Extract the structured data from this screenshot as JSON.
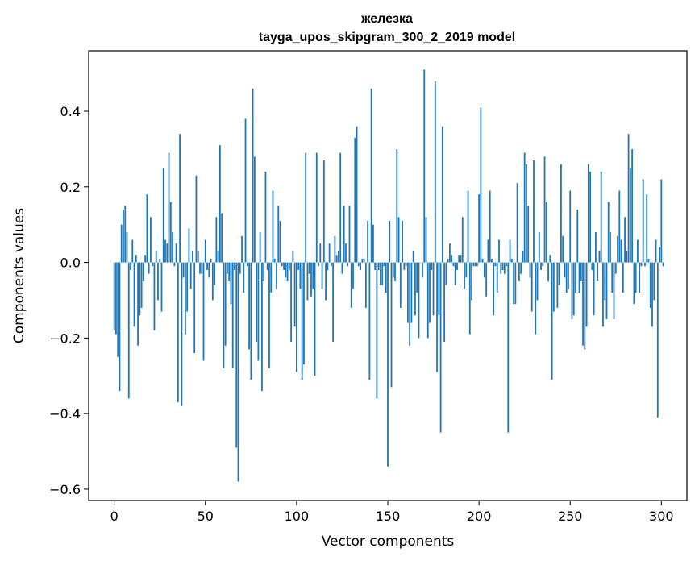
{
  "chart_data": {
    "type": "bar",
    "title": "железка",
    "subtitle": "tayga_upos_skipgram_300_2_2019 model",
    "xlabel": "Vector components",
    "ylabel": "Components values",
    "xlim": [
      -14,
      314
    ],
    "ylim": [
      -0.63,
      0.56
    ],
    "xticks": [
      0,
      50,
      100,
      150,
      200,
      250,
      300
    ],
    "yticks": [
      -0.6,
      -0.4,
      -0.2,
      0.0,
      0.2,
      0.4
    ],
    "ytick_labels": [
      "−0.6",
      "−0.4",
      "−0.2",
      "0.0",
      "0.2",
      "0.4"
    ],
    "bar_color": "#1f77b4",
    "grid": false,
    "values": [
      -0.18,
      -0.19,
      -0.25,
      -0.34,
      0.1,
      0.14,
      0.15,
      0.08,
      -0.36,
      -0.02,
      0.06,
      -0.17,
      0.02,
      -0.22,
      -0.14,
      -0.12,
      -0.05,
      0.02,
      0.18,
      -0.03,
      0.12,
      -0.01,
      -0.18,
      0.03,
      -0.1,
      0.01,
      -0.13,
      0.25,
      0.06,
      0.05,
      0.29,
      0.16,
      0.08,
      -0.01,
      0.05,
      -0.37,
      0.34,
      -0.38,
      -0.04,
      -0.19,
      -0.13,
      0.09,
      -0.07,
      0.03,
      -0.24,
      0.23,
      0.03,
      -0.03,
      -0.03,
      -0.26,
      0.06,
      -0.02,
      -0.04,
      0.01,
      -0.1,
      -0.06,
      0.12,
      0.03,
      0.31,
      0.13,
      -0.28,
      -0.22,
      -0.03,
      -0.05,
      -0.11,
      -0.28,
      -0.02,
      -0.49,
      -0.58,
      -0.03,
      0.07,
      -0.08,
      0.38,
      -0.01,
      -0.23,
      -0.31,
      0.46,
      0.28,
      -0.21,
      -0.26,
      0.08,
      -0.34,
      -0.05,
      0.24,
      -0.02,
      -0.28,
      -0.08,
      0.19,
      0.01,
      -0.07,
      0.15,
      0.11,
      -0.01,
      -0.02,
      -0.04,
      -0.05,
      -0.02,
      -0.21,
      0.03,
      -0.17,
      -0.29,
      -0.02,
      -0.07,
      -0.31,
      -0.27,
      0.29,
      -0.1,
      -0.03,
      -0.09,
      -0.07,
      -0.3,
      0.29,
      -0.01,
      0.05,
      -0.07,
      0.27,
      -0.1,
      -0.02,
      0.05,
      -0.01,
      -0.21,
      0.07,
      0.02,
      0.03,
      0.29,
      -0.03,
      0.15,
      0.05,
      -0.01,
      0.15,
      -0.12,
      -0.07,
      0.33,
      0.36,
      -0.01,
      -0.02,
      0.01,
      0.01,
      -0.12,
      0.11,
      -0.31,
      0.46,
      0.1,
      -0.02,
      -0.36,
      -0.02,
      -0.06,
      -0.06,
      -0.01,
      -0.08,
      -0.54,
      0.11,
      -0.33,
      -0.04,
      -0.05,
      0.3,
      0.12,
      -0.12,
      0.11,
      -0.02,
      -0.01,
      -0.16,
      -0.22,
      -0.16,
      0.03,
      -0.14,
      -0.08,
      -0.2,
      0.0,
      -0.04,
      0.51,
      0.12,
      -0.2,
      -0.16,
      -0.02,
      -0.14,
      0.48,
      -0.29,
      -0.14,
      -0.45,
      0.36,
      -0.21,
      -0.06,
      0.01,
      0.05,
      0.02,
      -0.01,
      -0.06,
      -0.02,
      0.02,
      0.02,
      0.12,
      -0.07,
      -0.04,
      0.19,
      -0.19,
      -0.1,
      -0.01,
      -0.01,
      -0.01,
      0.18,
      0.41,
      0.01,
      -0.04,
      -0.09,
      0.06,
      0.19,
      0.01,
      -0.14,
      -0.01,
      -0.08,
      0.06,
      -0.03,
      -0.02,
      -0.03,
      -0.01,
      -0.45,
      0.06,
      0.01,
      -0.11,
      -0.11,
      0.21,
      -0.05,
      -0.03,
      0.03,
      0.29,
      0.26,
      0.15,
      -0.04,
      -0.13,
      0.27,
      -0.19,
      -0.1,
      0.08,
      -0.02,
      -0.01,
      0.28,
      0.16,
      -0.05,
      0.02,
      -0.31,
      -0.13,
      0.0,
      -0.12,
      -0.06,
      0.26,
      0.07,
      -0.04,
      -0.08,
      -0.07,
      0.19,
      -0.15,
      -0.14,
      -0.08,
      0.14,
      -0.08,
      -0.05,
      -0.22,
      -0.23,
      -0.17,
      0.26,
      0.24,
      -0.02,
      -0.14,
      0.08,
      -0.05,
      0.03,
      0.24,
      -0.17,
      -0.1,
      -0.15,
      0.16,
      0.08,
      -0.08,
      -0.15,
      -0.03,
      0.07,
      0.19,
      0.06,
      -0.08,
      0.12,
      0.03,
      0.34,
      0.25,
      0.3,
      -0.11,
      -0.08,
      0.06,
      -0.08,
      -0.01,
      0.22,
      -0.01,
      0.18,
      0.01,
      -0.12,
      -0.17,
      -0.1,
      0.06,
      -0.41,
      0.04,
      0.22,
      -0.01
    ]
  }
}
